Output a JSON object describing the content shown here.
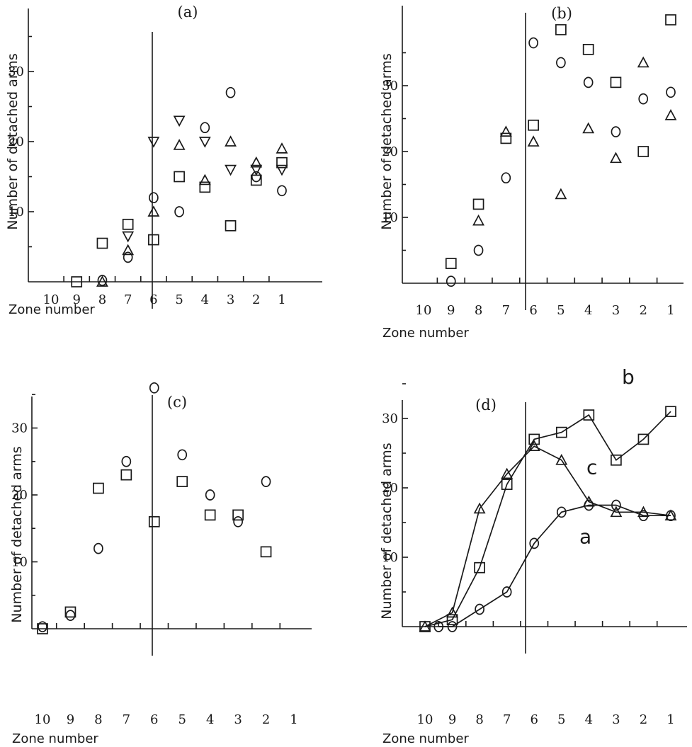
{
  "chart_data": [
    {
      "type": "scatter",
      "title": "(a)",
      "xlabel": "Zone number",
      "ylabel": "Number of detached arms",
      "x_ticks": [
        "10",
        "9",
        "8",
        "7",
        "6",
        "5",
        "4",
        "3",
        "2",
        "1"
      ],
      "y_ticks": [
        "10",
        "20",
        "30"
      ],
      "ylim": [
        0,
        36
      ],
      "x_direction": "reversed",
      "divider_after_zone": "7",
      "grid": false,
      "series": [
        {
          "marker": "square",
          "points": [
            [
              9,
              0
            ],
            [
              8,
              5.5
            ],
            [
              7,
              8.2
            ],
            [
              6,
              6
            ],
            [
              5,
              15
            ],
            [
              4,
              13.5
            ],
            [
              3,
              8
            ],
            [
              2,
              14.5
            ],
            [
              1,
              17
            ]
          ]
        },
        {
          "marker": "circle",
          "points": [
            [
              8,
              0.2
            ],
            [
              7,
              3.5
            ],
            [
              6,
              12
            ],
            [
              5,
              10
            ],
            [
              4,
              22
            ],
            [
              3,
              27
            ],
            [
              2,
              15
            ],
            [
              1,
              13
            ]
          ]
        },
        {
          "marker": "triangle-up",
          "points": [
            [
              8,
              0
            ],
            [
              7,
              4.5
            ],
            [
              6,
              10
            ],
            [
              5,
              19.5
            ],
            [
              4,
              14.5
            ],
            [
              3,
              20
            ],
            [
              2,
              17
            ],
            [
              1,
              19
            ]
          ]
        },
        {
          "marker": "triangle-down",
          "points": [
            [
              7,
              6.5
            ],
            [
              6,
              20
            ],
            [
              5,
              23
            ],
            [
              4,
              20
            ],
            [
              3,
              16
            ],
            [
              2,
              16
            ],
            [
              1,
              16
            ]
          ]
        }
      ]
    },
    {
      "type": "scatter",
      "title": "(b)",
      "xlabel": "Zone number",
      "ylabel": "Number of detached arms",
      "x_ticks": [
        "10",
        "9",
        "8",
        "7",
        "6",
        "5",
        "4",
        "3",
        "2",
        "1"
      ],
      "y_ticks": [
        "10",
        "20",
        "30"
      ],
      "ylim": [
        0,
        40
      ],
      "x_direction": "reversed",
      "divider_after_zone": "7",
      "grid": false,
      "series": [
        {
          "marker": "square",
          "points": [
            [
              9,
              3
            ],
            [
              8,
              12
            ],
            [
              7,
              22
            ],
            [
              6,
              24
            ],
            [
              5,
              38.5
            ],
            [
              4,
              35.5
            ],
            [
              3,
              30.5
            ],
            [
              2,
              20
            ],
            [
              1,
              40
            ]
          ]
        },
        {
          "marker": "circle",
          "points": [
            [
              9,
              0.3
            ],
            [
              8,
              5
            ],
            [
              7,
              16
            ],
            [
              6,
              36.5
            ],
            [
              5,
              33.5
            ],
            [
              4,
              30.5
            ],
            [
              3,
              23
            ],
            [
              2,
              28
            ],
            [
              1,
              29
            ]
          ]
        },
        {
          "marker": "triangle-up",
          "points": [
            [
              8,
              9.5
            ],
            [
              7,
              23
            ],
            [
              6,
              21.5
            ],
            [
              5,
              13.5
            ],
            [
              4,
              23.5
            ],
            [
              3,
              19
            ],
            [
              2,
              33.5
            ],
            [
              1,
              25.5
            ]
          ]
        }
      ]
    },
    {
      "type": "scatter",
      "title": "(c)",
      "xlabel": "Zone number",
      "ylabel": "Number of detached arms",
      "x_ticks": [
        "10",
        "9",
        "8",
        "7",
        "6",
        "5",
        "4",
        "3",
        "2",
        "1"
      ],
      "y_ticks": [
        "10",
        "20",
        "30"
      ],
      "ylim": [
        0,
        40
      ],
      "x_direction": "reversed",
      "divider_after_zone": "7",
      "grid": false,
      "series": [
        {
          "marker": "square",
          "points": [
            [
              10,
              0
            ],
            [
              9,
              2.5
            ],
            [
              8,
              21
            ],
            [
              7,
              23
            ],
            [
              6,
              16
            ],
            [
              5,
              22
            ],
            [
              4,
              17
            ],
            [
              3,
              17
            ],
            [
              2,
              11.5
            ]
          ]
        },
        {
          "marker": "circle",
          "points": [
            [
              10,
              0.3
            ],
            [
              9,
              2
            ],
            [
              8,
              12
            ],
            [
              7,
              25
            ],
            [
              6,
              36
            ],
            [
              5,
              26
            ],
            [
              4,
              20
            ],
            [
              3,
              16
            ],
            [
              2,
              22
            ]
          ]
        }
      ]
    },
    {
      "type": "line",
      "title": "(d)",
      "xlabel": "Zone number",
      "ylabel": "Number of detached arms",
      "x_ticks": [
        "10",
        "9",
        "8",
        "7",
        "6",
        "5",
        "4",
        "3",
        "2",
        "1"
      ],
      "y_ticks": [
        "10",
        "20",
        "30"
      ],
      "ylim": [
        0,
        40
      ],
      "x_direction": "reversed",
      "divider_after_zone": "7",
      "grid": false,
      "series": [
        {
          "name": "b",
          "marker": "square",
          "points": [
            [
              10,
              0
            ],
            [
              9,
              1
            ],
            [
              8,
              8.5
            ],
            [
              7,
              20.5
            ],
            [
              6,
              27
            ],
            [
              5,
              28
            ],
            [
              4,
              30.5
            ],
            [
              3,
              24
            ],
            [
              2,
              27
            ],
            [
              1,
              31
            ]
          ]
        },
        {
          "name": "c",
          "marker": "triangle-up",
          "points": [
            [
              10,
              0
            ],
            [
              9,
              2
            ],
            [
              8,
              17
            ],
            [
              7,
              22
            ],
            [
              6,
              26
            ],
            [
              5,
              24
            ],
            [
              4,
              18
            ],
            [
              3,
              16.5
            ],
            [
              2,
              16.5
            ],
            [
              1,
              16
            ]
          ]
        },
        {
          "name": "a",
          "marker": "circle",
          "points": [
            [
              9.5,
              0
            ],
            [
              9,
              0
            ],
            [
              8,
              2.5
            ],
            [
              7,
              5
            ],
            [
              6,
              12
            ],
            [
              5,
              16.5
            ],
            [
              4,
              17.5
            ],
            [
              3,
              17.5
            ],
            [
              2,
              16
            ],
            [
              1,
              16
            ]
          ]
        }
      ]
    }
  ]
}
